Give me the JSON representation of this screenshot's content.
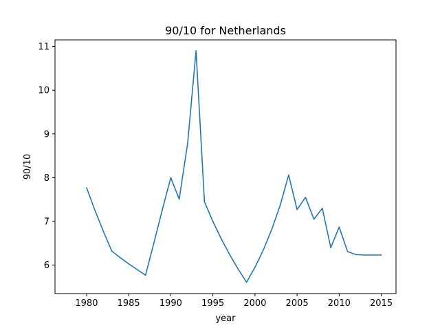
{
  "chart_data": {
    "type": "line",
    "title": "90/10 for Netherlands",
    "xlabel": "year",
    "ylabel": "90/10",
    "xlim": [
      1976.25,
      2016.75
    ],
    "ylim": [
      5.35,
      11.15
    ],
    "xticks": [
      1980,
      1985,
      1990,
      1995,
      2000,
      2005,
      2010,
      2015
    ],
    "xtick_labels": [
      "1980",
      "1985",
      "1990",
      "1995",
      "2000",
      "2005",
      "2010",
      "2015"
    ],
    "yticks": [
      6,
      7,
      8,
      9,
      10,
      11
    ],
    "ytick_labels": [
      "6",
      "7",
      "8",
      "9",
      "10",
      "11"
    ],
    "grid": false,
    "series": [
      {
        "color": "#1f77b4",
        "x": [
          1980,
          1981,
          1982,
          1983,
          1984,
          1985,
          1986,
          1987,
          1988,
          1989,
          1990,
          1991,
          1992,
          1993,
          1994,
          1995,
          1996,
          1997,
          1998,
          1999,
          2000,
          2001,
          2002,
          2003,
          2004,
          2005,
          2006,
          2007,
          2008,
          2009,
          2010,
          2011,
          2012,
          2013,
          2014,
          2015
        ],
        "y": [
          7.77,
          7.25,
          6.77,
          6.32,
          6.17,
          6.03,
          5.9,
          5.77,
          6.51,
          7.27,
          8.0,
          7.51,
          8.78,
          10.9,
          7.45,
          7.0,
          6.6,
          6.24,
          5.91,
          5.61,
          5.95,
          6.35,
          6.82,
          7.37,
          8.06,
          7.27,
          7.55,
          7.05,
          7.3,
          6.4,
          6.87,
          6.31,
          6.24,
          6.23,
          6.23,
          6.23
        ]
      }
    ]
  }
}
